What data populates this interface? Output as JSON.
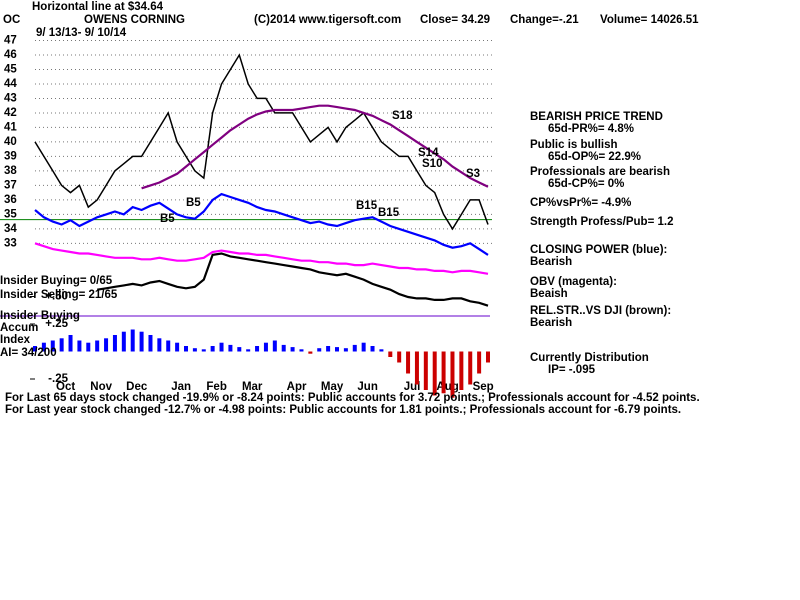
{
  "chart_data": {
    "type": "line",
    "ticker": "OC",
    "title": "OWENS CORNING",
    "subtitle": "Horizontal line at $34.64",
    "date_range": "9/ 13/13- 9/ 10/14",
    "copyright": "(C)2014 www.tigersoft.com",
    "close": "Close=  34.29",
    "change": "Change=-.21",
    "volume": "Volume= 14026.51",
    "hline": 34.64,
    "hline_color": "#008000",
    "categories": [
      null,
      null,
      null,
      "Oct",
      null,
      null,
      null,
      "Nov",
      null,
      null,
      null,
      "Dec",
      null,
      null,
      null,
      null,
      "Jan",
      null,
      null,
      null,
      "Feb",
      null,
      null,
      null,
      "Mar",
      null,
      null,
      null,
      null,
      "Apr",
      null,
      null,
      null,
      "May",
      null,
      null,
      null,
      "Jun",
      null,
      null,
      null,
      null,
      "Jul",
      null,
      null,
      null,
      "Aug",
      null,
      null,
      null,
      "Sep",
      null
    ],
    "ylim": [
      28.4,
      48
    ],
    "yticks": [
      33,
      34,
      35,
      36,
      37,
      38,
      39,
      40,
      41,
      42,
      43,
      44,
      45,
      46,
      47
    ],
    "grid": true,
    "series": [
      {
        "color": "#000000",
        "values": [
          40,
          39,
          38,
          37,
          36.5,
          37,
          35.5,
          36,
          37,
          38,
          38.5,
          39,
          39,
          40,
          41,
          42,
          40,
          39,
          38,
          37.5,
          42,
          44,
          45,
          46,
          44,
          43,
          43,
          42,
          42,
          42,
          41,
          40,
          40.5,
          41,
          40,
          41,
          41.5,
          42,
          41,
          40,
          39.5,
          39,
          39,
          38,
          37,
          36.5,
          35,
          34,
          35,
          36,
          36,
          34.3
        ]
      },
      {
        "color": "#800080",
        "values": [
          null,
          null,
          null,
          null,
          null,
          null,
          null,
          null,
          null,
          null,
          null,
          null,
          36.8,
          37.0,
          37.2,
          37.5,
          37.8,
          38.3,
          38.8,
          39.3,
          39.8,
          40.3,
          40.8,
          41.2,
          41.6,
          41.9,
          42.1,
          42.2,
          42.2,
          42.2,
          42.3,
          42.4,
          42.5,
          42.5,
          42.4,
          42.3,
          42.2,
          42.0,
          41.8,
          41.5,
          41.2,
          40.8,
          40.4,
          40.0,
          39.6,
          39.2,
          38.8,
          38.3,
          37.9,
          37.5,
          37.2,
          36.9
        ]
      },
      {
        "color": "#0000ff",
        "values": [
          35.3,
          34.8,
          34.5,
          34.3,
          34.6,
          34.2,
          34.5,
          34.8,
          35.0,
          35.2,
          35.0,
          35.5,
          35.3,
          35.6,
          35.8,
          35.4,
          35.0,
          34.8,
          34.7,
          35.2,
          36.0,
          36.4,
          36.2,
          36.0,
          35.8,
          35.5,
          35.3,
          35.2,
          35.0,
          34.8,
          34.6,
          34.4,
          34.5,
          34.3,
          34.2,
          34.4,
          34.6,
          34.7,
          34.8,
          34.5,
          34.2,
          34.0,
          33.8,
          33.6,
          33.4,
          33.2,
          32.9,
          32.7,
          32.8,
          33.0,
          32.6,
          32.2
        ]
      },
      {
        "color": "#ff00ff",
        "values": [
          33.0,
          32.8,
          32.6,
          32.5,
          32.4,
          32.3,
          32.3,
          32.2,
          32.1,
          32.0,
          32.0,
          32.0,
          31.9,
          31.9,
          32.0,
          31.9,
          31.8,
          31.8,
          31.9,
          32.0,
          32.4,
          32.5,
          32.4,
          32.3,
          32.3,
          32.2,
          32.2,
          32.1,
          32.0,
          31.9,
          31.8,
          31.8,
          31.7,
          31.7,
          31.6,
          31.6,
          31.5,
          31.5,
          31.6,
          31.5,
          31.4,
          31.3,
          31.3,
          31.2,
          31.2,
          31.1,
          31.1,
          31.0,
          31.1,
          31.1,
          31.0,
          30.9
        ]
      },
      {
        "color": "#000000",
        "values": [
          null,
          null,
          null,
          null,
          null,
          null,
          null,
          29.8,
          29.9,
          30.0,
          30.1,
          30.2,
          30.1,
          30.3,
          30.4,
          30.2,
          30.0,
          29.9,
          30.0,
          30.5,
          32.2,
          32.3,
          32.1,
          32.0,
          31.9,
          31.8,
          31.7,
          31.6,
          31.5,
          31.4,
          31.3,
          31.2,
          31.0,
          30.9,
          30.8,
          30.9,
          30.7,
          30.5,
          30.2,
          30.0,
          29.8,
          29.5,
          29.3,
          29.2,
          29.2,
          29.1,
          29.1,
          29.2,
          29.2,
          29.0,
          28.9,
          28.7
        ]
      }
    ],
    "accum": {
      "values": [
        0.05,
        0.08,
        0.1,
        0.12,
        0.15,
        0.1,
        0.08,
        0.1,
        0.12,
        0.15,
        0.18,
        0.2,
        0.18,
        0.15,
        0.12,
        0.1,
        0.08,
        0.05,
        0.03,
        0.02,
        0.05,
        0.08,
        0.06,
        0.04,
        0.02,
        0.05,
        0.08,
        0.1,
        0.06,
        0.04,
        0.02,
        -0.02,
        0.03,
        0.05,
        0.04,
        0.03,
        0.06,
        0.08,
        0.05,
        0.02,
        -0.05,
        -0.1,
        -0.2,
        -0.3,
        -0.35,
        -0.4,
        -0.38,
        -0.42,
        -0.35,
        -0.3,
        -0.2,
        -0.1
      ],
      "ylim": [
        -0.45,
        0.55
      ],
      "yticks": [
        {
          "value": 0.5,
          "label": "+.50"
        },
        {
          "value": 0.25,
          "label": "+.25"
        },
        {
          "value": -0.25,
          "label": "-.25"
        }
      ],
      "pos_color": "#0000ff",
      "neg_color": "#cc0000"
    },
    "signals": [
      "S18",
      "S14",
      "S10",
      "S3",
      "B15",
      "B15",
      "B5",
      "B5"
    ],
    "left_notes": [
      "Insider Buying= 0/65",
      "Insider Selling= 21/65",
      "Insider Buying",
      "Accum",
      "Index",
      "AI= 34/200"
    ],
    "right_notes": [
      "BEARISH PRICE TREND",
      "65d-PR%= 4.8%",
      "Public is bullish",
      "65d-OP%= 22.9%",
      "Professionals are bearish",
      "65d-CP%= 0%",
      "CP%vsPr%= -4.9%",
      "Strength Profess/Pub= 1.2",
      "CLOSING POWER (blue):",
      "Bearish",
      "OBV (magenta):",
      "Beaish",
      "REL.STR..VS DJI (brown):",
      "Bearish",
      "Currently Distribution",
      "IP= -.095"
    ],
    "footer": [
      "For Last 65 days stock changed -19.9% or -8.24 points:  Public accounts for  3.72 points.;  Professionals account for -4.52 points.",
      "For Last year stock changed -12.7% or -4.98 points:  Public accounts for  1.81 points.;  Professionals account for -6.79 points."
    ]
  }
}
